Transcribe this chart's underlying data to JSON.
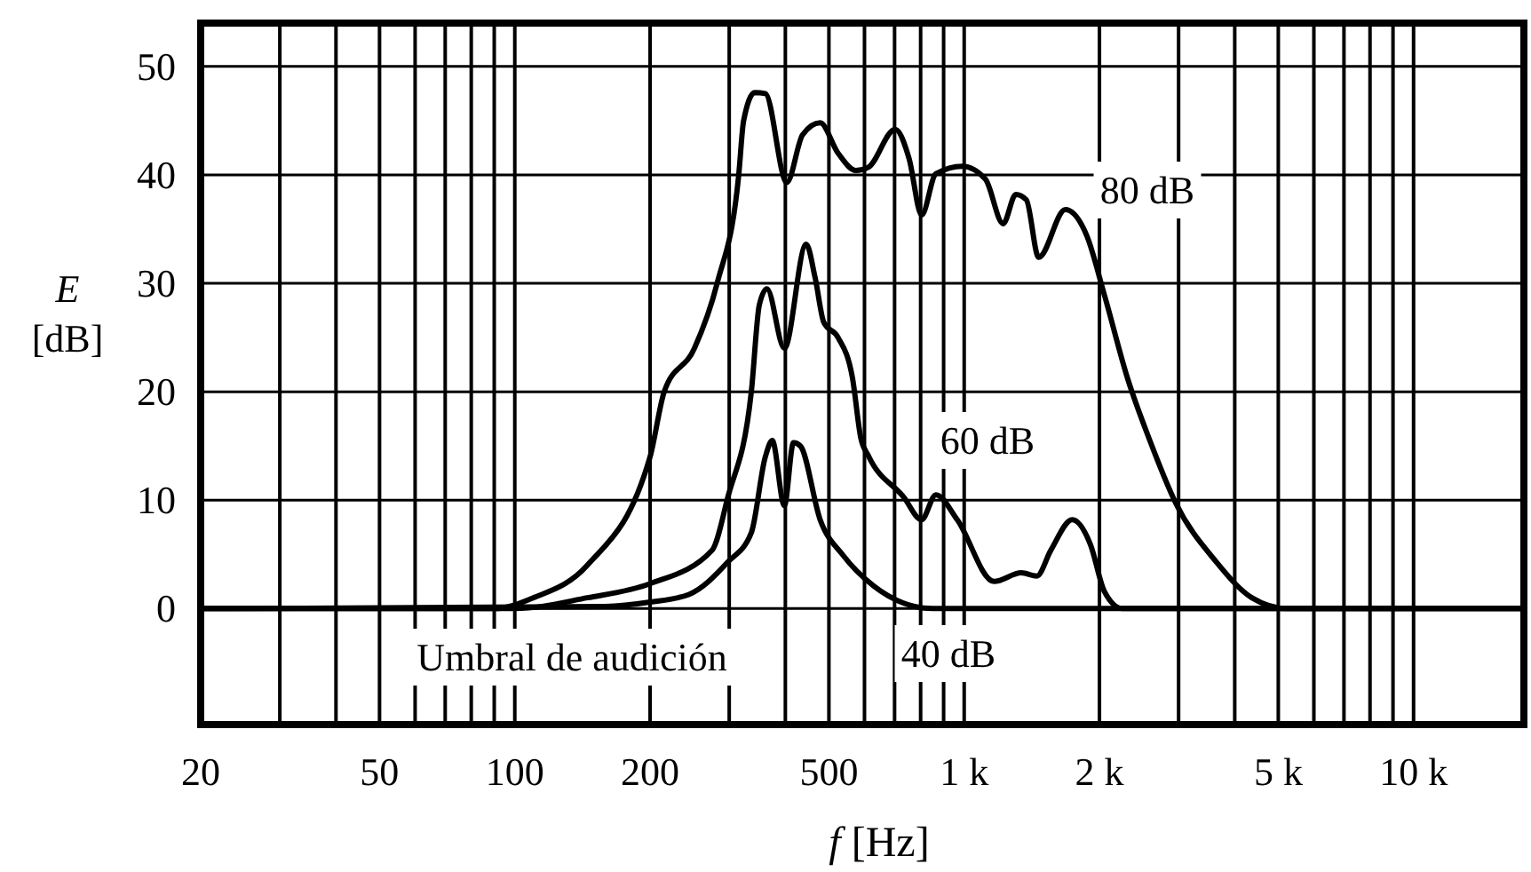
{
  "chart_data": {
    "type": "line",
    "xlabel": "f [Hz]",
    "ylabel": "E [dB]",
    "log": "x",
    "grid": true,
    "marker": "none",
    "line_style": "solid",
    "xlim": [
      20,
      17600
    ],
    "ylim": [
      -10.7,
      54
    ],
    "xticks": [
      20,
      {
        "value": 30,
        "label": null
      },
      {
        "value": 40,
        "label": null
      },
      50,
      {
        "value": 60,
        "label": null
      },
      {
        "value": 70,
        "label": null
      },
      {
        "value": 80,
        "label": null
      },
      {
        "value": 90,
        "label": null
      },
      100,
      200,
      {
        "value": 300,
        "label": null
      },
      {
        "value": 400,
        "label": null
      },
      500,
      {
        "value": 600,
        "label": null
      },
      {
        "value": 700,
        "label": null
      },
      {
        "value": 800,
        "label": null
      },
      {
        "value": 900,
        "label": null
      },
      {
        "value": 1000,
        "label": "1 k"
      },
      {
        "value": 2000,
        "label": "2 k"
      },
      {
        "value": 3000,
        "label": null
      },
      {
        "value": 4000,
        "label": null
      },
      {
        "value": 5000,
        "label": "5 k"
      },
      {
        "value": 6000,
        "label": null
      },
      {
        "value": 7000,
        "label": null
      },
      {
        "value": 8000,
        "label": null
      },
      {
        "value": 9000,
        "label": null
      },
      {
        "value": 10000,
        "label": "10 k"
      }
    ],
    "yticks": [
      0,
      10,
      20,
      30,
      40,
      50
    ],
    "series": [
      {
        "name": "80 dB",
        "color": "#000000",
        "x": [
          20,
          90,
          110,
          145,
          200,
          215,
          251,
          282,
          315,
          323,
          342,
          361,
          403,
          437,
          478,
          524,
          574,
          612,
          702,
          754,
          804,
          865,
          991,
          1115,
          1221,
          1303,
          1375,
          1465,
          1679,
          1874,
          2052,
          2311,
          2600,
          2951,
          3640,
          4365,
          5236,
          17600
        ],
        "values": [
          0,
          0,
          1,
          4,
          14,
          20,
          24,
          30,
          40,
          45,
          47.6,
          47.5,
          39.3,
          43.7,
          44.8,
          42,
          40.4,
          40.7,
          44.2,
          41.5,
          36.3,
          40.1,
          40.8,
          39.6,
          35.5,
          38.2,
          37.7,
          32.4,
          36.8,
          34.4,
          28.9,
          21.2,
          15.3,
          9.8,
          4.3,
          1,
          0,
          0
        ]
      },
      {
        "name": "60 dB",
        "color": "#000000",
        "x": [
          20,
          100,
          145,
          200,
          275,
          298,
          336,
          350,
          364,
          398,
          445,
          466,
          487,
          524,
          564,
          589,
          612,
          733,
          804,
          865,
          965,
          1165,
          1340,
          1450,
          1560,
          1740,
          1910,
          2050,
          2250,
          17600
        ],
        "values": [
          0,
          0,
          1,
          2.3,
          5.4,
          10.3,
          20,
          28,
          29.5,
          24,
          33.6,
          30.5,
          26.4,
          25,
          21.3,
          15.7,
          14.1,
          10.3,
          8.2,
          10.5,
          8.2,
          2.5,
          3.3,
          3,
          5.4,
          8.2,
          5.9,
          1.6,
          0,
          0
        ]
      },
      {
        "name": "40 dB",
        "color": "#000000",
        "x": [
          20,
          159,
          200,
          244,
          298,
          336,
          361,
          374,
          398,
          417,
          432,
          478,
          538,
          628,
          775,
          850,
          17600
        ],
        "values": [
          0,
          0.2,
          0.6,
          1.3,
          4.3,
          7,
          14,
          15.5,
          9.5,
          15.3,
          15,
          8.2,
          4.9,
          2.1,
          0.2,
          0,
          0
        ]
      }
    ],
    "annotations": [
      "Umbral de audición"
    ]
  }
}
